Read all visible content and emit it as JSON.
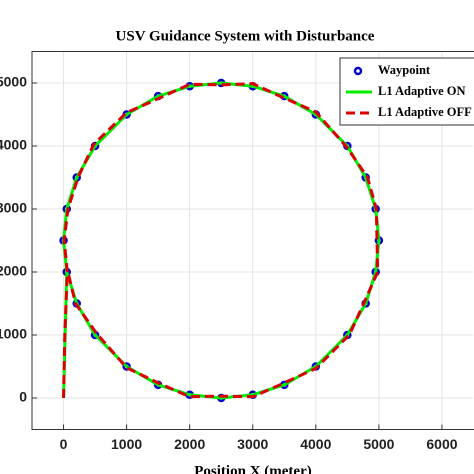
{
  "chart_data": {
    "type": "line",
    "title": "USV Guidance System with Disturbance",
    "xlabel": "Position X (meter)",
    "xlim": [
      -500,
      6500
    ],
    "ylim": [
      -500,
      5500
    ],
    "xticks": [
      0,
      1000,
      2000,
      3000,
      4000,
      5000,
      6000
    ],
    "yticks": [
      0,
      1000,
      2000,
      3000,
      4000,
      5000
    ],
    "grid": true,
    "legend": "upper right",
    "series": [
      {
        "name": "Waypoint",
        "color": "#0000cc",
        "mode": "markers",
        "x": [
          0,
          51,
          209,
          500,
          1000,
          1500,
          2000,
          2500,
          3000,
          3500,
          4000,
          4500,
          4791,
          4949,
          5000,
          4949,
          4791,
          4500,
          4000,
          3500,
          3000,
          2500,
          2000,
          1500,
          1000,
          500,
          209,
          51
        ],
        "values": [
          2500,
          3000,
          3500,
          4000,
          4500,
          4791,
          4949,
          5000,
          4949,
          4791,
          4500,
          4000,
          3500,
          3000,
          2500,
          2000,
          1500,
          1000,
          500,
          209,
          51,
          0,
          51,
          209,
          500,
          1000,
          1500,
          2000
        ]
      },
      {
        "name": "L1 Adaptive ON",
        "color": "#00ee00",
        "mode": "solid",
        "x": [
          0,
          51,
          0,
          51,
          209,
          500,
          1000,
          1500,
          2000,
          2500,
          3000,
          3500,
          4000,
          4500,
          4791,
          4949,
          5000,
          4949,
          4791,
          4500,
          4000,
          3500,
          3000,
          2500,
          2000,
          1500,
          1000,
          500,
          209,
          51
        ],
        "values": [
          0,
          2000,
          2500,
          3000,
          3500,
          4000,
          4500,
          4791,
          4949,
          5000,
          4949,
          4791,
          4500,
          4000,
          3500,
          3000,
          2500,
          2000,
          1500,
          1000,
          500,
          209,
          51,
          0,
          51,
          209,
          500,
          1000,
          1500,
          2000
        ]
      },
      {
        "name": "L1 Adaptive OFF",
        "color": "#dd0000",
        "mode": "dashed",
        "x": [
          0,
          20,
          60,
          10,
          70,
          230,
          480,
          1000,
          1520,
          2000,
          2500,
          3000,
          3500,
          4000,
          4500,
          4820,
          4960,
          4970,
          4980,
          4760,
          4530,
          4000,
          3500,
          3000,
          2500,
          2000,
          1500,
          1000,
          520,
          190,
          70
        ],
        "values": [
          0,
          1000,
          2000,
          2500,
          3000,
          3500,
          4030,
          4530,
          4760,
          4980,
          4970,
          4990,
          4760,
          4540,
          3970,
          3500,
          3000,
          2500,
          2000,
          1500,
          1000,
          470,
          240,
          20,
          30,
          20,
          240,
          480,
          1030,
          1500,
          2000
        ]
      }
    ]
  }
}
